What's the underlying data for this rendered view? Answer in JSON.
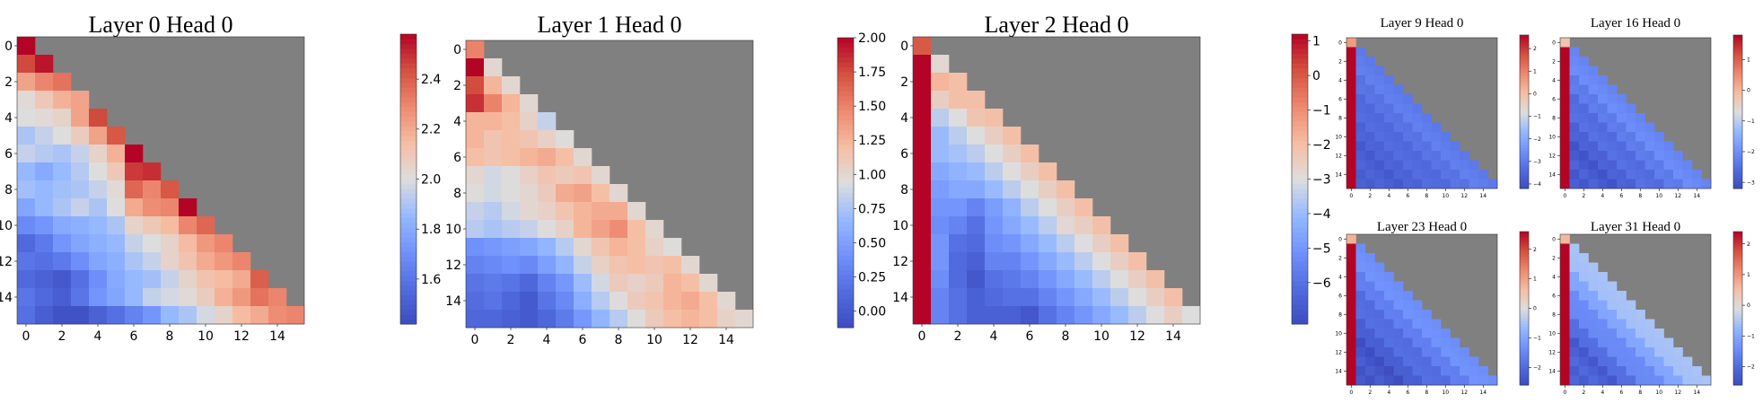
{
  "chart_data": [
    {
      "type": "heatmap",
      "title": "Layer 0 Head 0",
      "n": 16,
      "x_ticks": [
        "0",
        "2",
        "4",
        "6",
        "8",
        "10",
        "12",
        "14"
      ],
      "y_ticks": [
        "0",
        "2",
        "4",
        "6",
        "8",
        "10",
        "12",
        "14"
      ],
      "colorbar": {
        "vmin": 1.42,
        "vmax": 2.58,
        "ticks": [
          "1.6",
          "1.8",
          "2.0",
          "2.2",
          "2.4"
        ],
        "tick_values": [
          1.6,
          1.8,
          2.0,
          2.2,
          2.4
        ]
      },
      "values": [
        [
          2.58
        ],
        [
          2.45,
          2.55
        ],
        [
          2.22,
          2.3,
          2.35
        ],
        [
          2.02,
          2.1,
          2.18,
          2.22
        ],
        [
          2.0,
          2.02,
          2.05,
          2.22,
          2.45
        ],
        [
          1.9,
          1.95,
          2.0,
          2.08,
          2.22,
          2.42
        ],
        [
          1.95,
          1.92,
          1.9,
          1.95,
          2.05,
          2.18,
          2.58
        ],
        [
          1.85,
          1.8,
          1.86,
          1.92,
          2.0,
          2.1,
          2.48,
          2.5
        ],
        [
          1.88,
          1.85,
          1.88,
          1.9,
          1.95,
          2.02,
          2.38,
          2.3,
          2.42
        ],
        [
          1.78,
          1.85,
          1.9,
          1.95,
          1.9,
          2.0,
          2.2,
          2.28,
          2.3,
          2.58
        ],
        [
          1.68,
          1.72,
          1.8,
          1.82,
          1.85,
          1.9,
          2.05,
          2.1,
          2.15,
          2.3,
          2.38
        ],
        [
          1.55,
          1.62,
          1.72,
          1.78,
          1.82,
          1.85,
          1.95,
          2.0,
          2.05,
          2.15,
          2.25,
          2.3
        ],
        [
          1.6,
          1.58,
          1.62,
          1.7,
          1.78,
          1.82,
          1.9,
          1.95,
          2.05,
          2.12,
          2.2,
          2.25,
          2.3
        ],
        [
          1.55,
          1.52,
          1.48,
          1.58,
          1.7,
          1.8,
          1.85,
          1.88,
          1.95,
          2.05,
          2.12,
          2.15,
          2.2,
          2.4
        ],
        [
          1.6,
          1.55,
          1.5,
          1.6,
          1.72,
          1.78,
          1.85,
          1.95,
          1.98,
          2.02,
          2.08,
          2.18,
          2.25,
          2.35,
          2.3
        ],
        [
          1.58,
          1.5,
          1.45,
          1.45,
          1.52,
          1.58,
          1.65,
          1.72,
          1.85,
          1.9,
          1.98,
          2.05,
          2.15,
          2.2,
          2.28,
          2.3
        ]
      ]
    },
    {
      "type": "heatmap",
      "title": "Layer 1 Head 0",
      "n": 16,
      "x_ticks": [
        "0",
        "2",
        "4",
        "6",
        "8",
        "10",
        "12",
        "14"
      ],
      "y_ticks": [
        "0",
        "2",
        "4",
        "6",
        "8",
        "10",
        "12",
        "14"
      ],
      "colorbar": {
        "vmin": -0.12,
        "vmax": 2.0,
        "ticks": [
          "0.00",
          "0.25",
          "0.50",
          "0.75",
          "1.00",
          "1.25",
          "1.50",
          "1.75",
          "2.00"
        ],
        "tick_values": [
          0,
          0.25,
          0.5,
          0.75,
          1.0,
          1.25,
          1.5,
          1.75,
          2.0
        ]
      },
      "values": [
        [
          1.5
        ],
        [
          2.0,
          1.0
        ],
        [
          1.75,
          1.25,
          1.0
        ],
        [
          1.85,
          1.5,
          1.25,
          1.0
        ],
        [
          1.25,
          1.25,
          1.2,
          1.05,
          0.85
        ],
        [
          1.25,
          1.15,
          1.2,
          1.15,
          1.05,
          0.95
        ],
        [
          1.2,
          1.15,
          1.2,
          1.25,
          1.3,
          1.2,
          1.0
        ],
        [
          1.0,
          0.9,
          0.95,
          1.05,
          1.15,
          1.1,
          1.15,
          1.0
        ],
        [
          0.95,
          0.9,
          0.95,
          1.0,
          1.1,
          1.3,
          1.35,
          1.2,
          1.0
        ],
        [
          0.85,
          0.8,
          0.9,
          1.0,
          1.05,
          1.15,
          1.25,
          1.3,
          1.3,
          1.0
        ],
        [
          0.8,
          0.75,
          0.8,
          0.85,
          0.95,
          1.05,
          1.25,
          1.35,
          1.45,
          1.2,
          1.0
        ],
        [
          0.4,
          0.45,
          0.5,
          0.55,
          0.65,
          0.8,
          1.0,
          1.15,
          1.25,
          1.2,
          1.05,
          0.95
        ],
        [
          0.3,
          0.35,
          0.4,
          0.35,
          0.5,
          0.65,
          0.85,
          1.05,
          1.15,
          1.2,
          1.15,
          1.2,
          1.0
        ],
        [
          0.2,
          0.25,
          0.2,
          0.1,
          0.3,
          0.45,
          0.7,
          0.9,
          1.1,
          1.05,
          1.1,
          1.25,
          1.2,
          1.0
        ],
        [
          0.15,
          0.2,
          0.1,
          0.0,
          0.2,
          0.35,
          0.6,
          0.8,
          0.95,
          1.1,
          1.15,
          1.25,
          1.3,
          1.2,
          1.0
        ],
        [
          0.1,
          0.1,
          0.05,
          0.0,
          0.1,
          0.25,
          0.45,
          0.65,
          0.8,
          0.95,
          1.1,
          1.2,
          1.25,
          1.2,
          1.05,
          1.0
        ]
      ]
    },
    {
      "type": "heatmap",
      "title": "Layer 2 Head 0",
      "n": 16,
      "x_ticks": [
        "0",
        "2",
        "4",
        "6",
        "8",
        "10",
        "12",
        "14"
      ],
      "y_ticks": [
        "0",
        "2",
        "4",
        "6",
        "8",
        "10",
        "12",
        "14"
      ],
      "colorbar": {
        "vmin": -7.2,
        "vmax": 1.2,
        "ticks": [
          "−6",
          "−5",
          "−4",
          "−3",
          "−2",
          "−1",
          "0",
          "1"
        ],
        "tick_values": [
          -6,
          -5,
          -4,
          -3,
          -2,
          -1,
          0,
          1
        ]
      },
      "values": [
        [
          0.0
        ],
        [
          1.2,
          -2.8
        ],
        [
          1.2,
          -1.8,
          -2.0
        ],
        [
          1.2,
          -2.5,
          -2.0,
          -2.0
        ],
        [
          1.2,
          -3.5,
          -3.0,
          -2.2,
          -2.0
        ],
        [
          1.2,
          -4.0,
          -3.5,
          -3.0,
          -2.5,
          -2.0
        ],
        [
          1.2,
          -4.0,
          -3.8,
          -3.5,
          -3.0,
          -2.5,
          -2.0
        ],
        [
          1.2,
          -4.5,
          -4.2,
          -4.0,
          -3.5,
          -3.0,
          -2.5,
          -2.0
        ],
        [
          1.2,
          -4.8,
          -4.5,
          -4.5,
          -4.0,
          -3.5,
          -3.0,
          -2.5,
          -2.0
        ],
        [
          1.2,
          -5.0,
          -5.0,
          -5.5,
          -4.8,
          -4.2,
          -3.5,
          -3.0,
          -2.5,
          -2.0
        ],
        [
          1.2,
          -5.2,
          -5.5,
          -6.0,
          -5.0,
          -4.5,
          -4.0,
          -3.5,
          -2.8,
          -2.5,
          -2.0
        ],
        [
          1.2,
          -5.0,
          -6.0,
          -6.2,
          -5.2,
          -5.0,
          -4.5,
          -4.0,
          -3.5,
          -3.0,
          -2.5,
          -2.0
        ],
        [
          1.2,
          -5.0,
          -6.2,
          -6.5,
          -5.5,
          -5.5,
          -5.0,
          -4.5,
          -4.0,
          -3.5,
          -3.0,
          -2.5,
          -2.0
        ],
        [
          1.2,
          -5.2,
          -6.2,
          -6.8,
          -6.0,
          -5.8,
          -5.5,
          -5.0,
          -4.5,
          -4.0,
          -3.5,
          -3.0,
          -2.5,
          -2.0
        ],
        [
          1.2,
          -5.5,
          -6.0,
          -6.5,
          -6.2,
          -6.0,
          -6.0,
          -5.5,
          -5.0,
          -4.5,
          -4.0,
          -3.5,
          -3.0,
          -2.5,
          -2.0
        ],
        [
          1.2,
          -5.5,
          -6.0,
          -6.5,
          -6.5,
          -6.5,
          -6.8,
          -6.0,
          -5.5,
          -5.0,
          -4.5,
          -4.0,
          -3.5,
          -3.0,
          -2.5,
          -3.0
        ]
      ]
    },
    {
      "type": "heatmap",
      "title": "Layer 9 Head 0",
      "n": 16,
      "x_ticks": [
        "0",
        "2",
        "4",
        "6",
        "8",
        "10",
        "12",
        "14"
      ],
      "y_ticks": [
        "0",
        "2",
        "4",
        "6",
        "8",
        "10",
        "12",
        "14"
      ],
      "colorbar": {
        "vmin": -4.2,
        "vmax": 2.6,
        "ticks": [
          "−4",
          "−3",
          "−2",
          "−1",
          "0",
          "1",
          "2"
        ],
        "tick_values": [
          -4,
          -3,
          -2,
          -1,
          0,
          1,
          2
        ]
      },
      "first_col": 2.6,
      "diag": -2.9,
      "far": -3.7,
      "first_cell": 0.6
    },
    {
      "type": "heatmap",
      "title": "Layer 16 Head 0",
      "n": 16,
      "x_ticks": [
        "0",
        "2",
        "4",
        "6",
        "8",
        "10",
        "12",
        "14"
      ],
      "y_ticks": [
        "0",
        "2",
        "4",
        "6",
        "8",
        "10",
        "12",
        "14"
      ],
      "colorbar": {
        "vmin": -3.2,
        "vmax": 1.8,
        "ticks": [
          "−3",
          "−2",
          "−1",
          "0",
          "1"
        ],
        "tick_values": [
          -3,
          -2,
          -1,
          0,
          1
        ]
      },
      "first_col": 1.8,
      "diag": -2.0,
      "far": -2.9,
      "first_cell": -0.2
    },
    {
      "type": "heatmap",
      "title": "Layer 23 Head 0",
      "n": 16,
      "x_ticks": [
        "0",
        "2",
        "4",
        "6",
        "8",
        "10",
        "12",
        "14"
      ],
      "y_ticks": [
        "0",
        "2",
        "4",
        "6",
        "8",
        "10",
        "12",
        "14"
      ],
      "colorbar": {
        "vmin": -2.6,
        "vmax": 2.6,
        "ticks": [
          "−2",
          "−1",
          "0",
          "1",
          "2"
        ],
        "tick_values": [
          -2,
          -1,
          0,
          1,
          2
        ]
      },
      "first_col": 2.6,
      "diag": -1.2,
      "far": -2.4,
      "first_cell": 0.8
    },
    {
      "type": "heatmap",
      "title": "Layer 31 Head 0",
      "n": 16,
      "x_ticks": [
        "0",
        "2",
        "4",
        "6",
        "8",
        "10",
        "12",
        "14"
      ],
      "y_ticks": [
        "0",
        "2",
        "4",
        "6",
        "8",
        "10",
        "12",
        "14"
      ],
      "colorbar": {
        "vmin": -2.6,
        "vmax": 2.4,
        "ticks": [
          "−2",
          "−1",
          "0",
          "1",
          "2"
        ],
        "tick_values": [
          -2,
          -1,
          0,
          1,
          2
        ]
      },
      "first_col": 2.4,
      "diag": -0.4,
      "far": -2.2,
      "first_cell": 0.6
    }
  ],
  "colors": {
    "masked": "#808080",
    "cmap_low": "#3b4cc0",
    "cmap_mid": "#dddddd",
    "cmap_high": "#b40426"
  }
}
